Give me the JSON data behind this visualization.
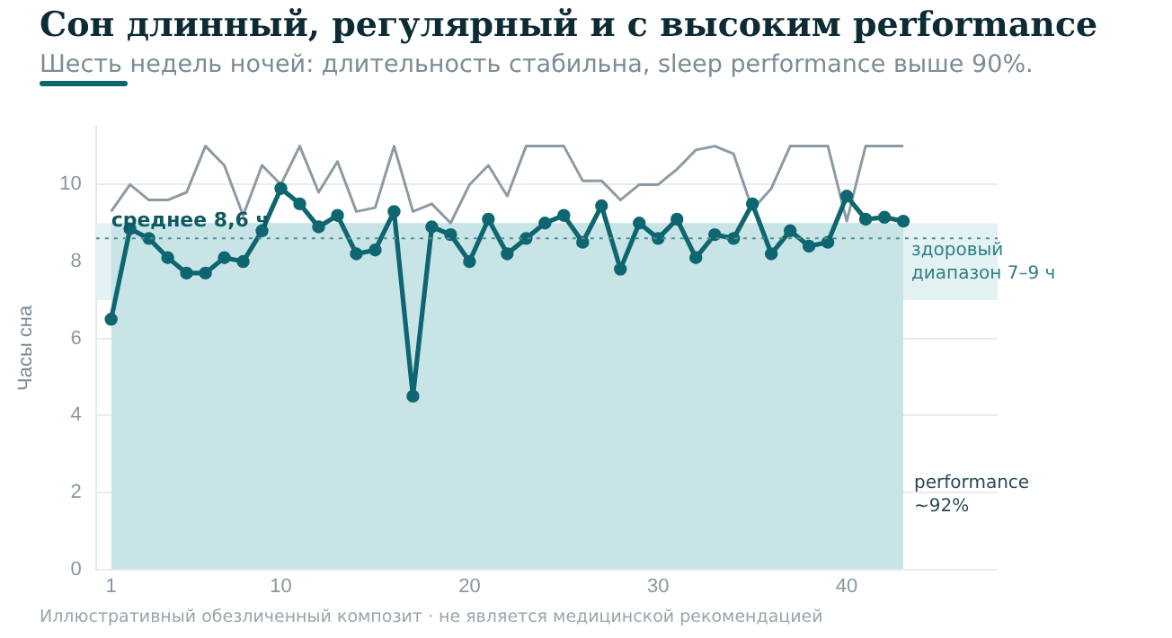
{
  "chart_data": {
    "type": "line",
    "title": "Сон длинный, регулярный и с высоким performance",
    "subtitle": "Шесть недель ночей: длительность стабильна, sleep performance выше 90%.",
    "ylabel": "Часы сна",
    "x": [
      1,
      2,
      3,
      4,
      5,
      6,
      7,
      8,
      9,
      10,
      11,
      12,
      13,
      14,
      15,
      16,
      17,
      18,
      19,
      20,
      21,
      22,
      23,
      24,
      25,
      26,
      27,
      28,
      29,
      30,
      31,
      32,
      33,
      34,
      35,
      36,
      37,
      38,
      39,
      40,
      41,
      42,
      43
    ],
    "series": [
      {
        "type": "area",
        "name": "performance ~92%",
        "color": "#c8e4e7",
        "marker": "none",
        "x": [
          1,
          43
        ],
        "values": [
          9,
          9
        ]
      },
      {
        "color": "#8e9aa1",
        "marker": "none",
        "values": [
          9.3,
          10.0,
          9.6,
          9.6,
          9.8,
          11.0,
          10.5,
          9.2,
          10.5,
          10.0,
          11.0,
          9.8,
          10.6,
          9.3,
          9.4,
          11.0,
          9.3,
          9.5,
          9.0,
          10.0,
          10.5,
          9.7,
          11.0,
          11.0,
          11.0,
          10.1,
          10.1,
          9.6,
          10.0,
          10.0,
          10.4,
          10.9,
          11.0,
          10.8,
          9.35,
          9.9,
          11.0,
          11.0,
          11.0,
          9.05,
          11.0,
          11.0,
          11.0
        ]
      },
      {
        "color": "#0e6670",
        "values": [
          6.5,
          8.85,
          8.6,
          8.1,
          7.7,
          7.7,
          8.1,
          8.0,
          8.8,
          9.9,
          9.5,
          8.9,
          9.2,
          8.2,
          8.3,
          9.3,
          4.5,
          8.9,
          8.7,
          8.0,
          9.1,
          8.2,
          8.6,
          9.0,
          9.2,
          8.5,
          9.45,
          7.8,
          9.0,
          8.6,
          9.1,
          8.1,
          8.7,
          8.6,
          9.5,
          8.2,
          8.8,
          8.4,
          8.5,
          9.7,
          9.1,
          9.15,
          9.05
        ]
      }
    ],
    "xlim": [
      0.2,
      48
    ],
    "xticks": [
      1,
      10,
      20,
      30,
      40
    ],
    "ylim": [
      0,
      11.5
    ],
    "yticks": [
      0,
      2,
      4,
      6,
      8,
      10
    ],
    "bands": [
      {
        "axis": "y",
        "from": 7,
        "to": 9,
        "label": "здоровый диапазон 7–9 ч",
        "color": "#e5f2f3"
      }
    ],
    "ref_lines": [
      {
        "axis": "y",
        "value": 8.6,
        "label": "среднее 8,6 ч",
        "color": "#4f8f94",
        "line_style": "dotted"
      }
    ],
    "annotations": [
      "Иллюстративный обезличенный композит · не является медицинской рекомендацией"
    ],
    "grid": "y",
    "legend": false,
    "marker": "circle",
    "line_style": "solid"
  }
}
